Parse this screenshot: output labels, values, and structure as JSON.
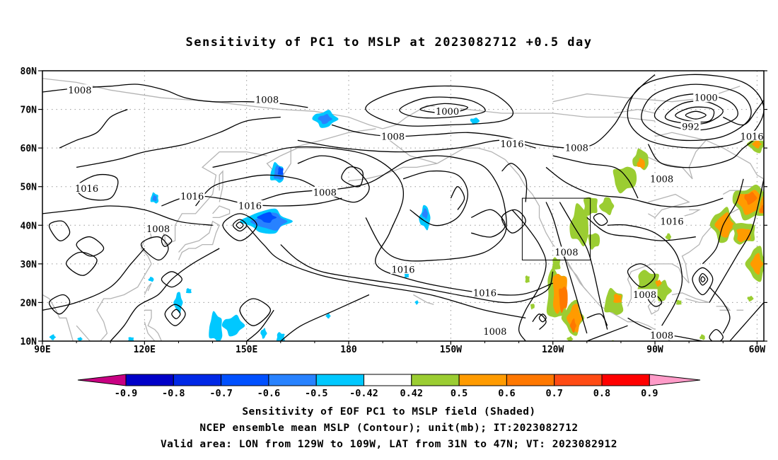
{
  "title": "Sensitivity of PC1 to MSLP at 2023082712 +0.5 day",
  "map": {
    "lon_range": [
      90,
      302
    ],
    "lat_range": [
      10,
      80
    ],
    "lat_ticks": [
      {
        "v": 80,
        "label": "80N"
      },
      {
        "v": 70,
        "label": "70N"
      },
      {
        "v": 60,
        "label": "60N"
      },
      {
        "v": 50,
        "label": "50N"
      },
      {
        "v": 40,
        "label": "40N"
      },
      {
        "v": 30,
        "label": "30N"
      },
      {
        "v": 20,
        "label": "20N"
      },
      {
        "v": 10,
        "label": "10N"
      }
    ],
    "lon_ticks": [
      {
        "v": 90,
        "label": "90E"
      },
      {
        "v": 120,
        "label": "120E"
      },
      {
        "v": 150,
        "label": "150E"
      },
      {
        "v": 180,
        "label": "180"
      },
      {
        "v": 210,
        "label": "150W"
      },
      {
        "v": 240,
        "label": "120W"
      },
      {
        "v": 270,
        "label": "90W"
      },
      {
        "v": 300,
        "label": "60W"
      }
    ],
    "valid_area": {
      "lon": [
        231,
        251
      ],
      "lat": [
        31,
        47
      ]
    },
    "contour_labels": [
      {
        "text": "1008",
        "lon": 101,
        "lat": 75
      },
      {
        "text": "1008",
        "lon": 156,
        "lat": 72.5
      },
      {
        "text": "1000",
        "lon": 209,
        "lat": 69.5
      },
      {
        "text": "1000",
        "lon": 285,
        "lat": 73
      },
      {
        "text": "992",
        "lon": 280.5,
        "lat": 65.5
      },
      {
        "text": "1016",
        "lon": 298.5,
        "lat": 63
      },
      {
        "text": "1008",
        "lon": 193,
        "lat": 63
      },
      {
        "text": "1016",
        "lon": 228,
        "lat": 61
      },
      {
        "text": "1008",
        "lon": 247,
        "lat": 60
      },
      {
        "text": "1008",
        "lon": 272,
        "lat": 52
      },
      {
        "text": "1016",
        "lon": 103,
        "lat": 49.5
      },
      {
        "text": "1016",
        "lon": 134,
        "lat": 47.5
      },
      {
        "text": "1008",
        "lon": 173,
        "lat": 48.5
      },
      {
        "text": "1016",
        "lon": 151,
        "lat": 45
      },
      {
        "text": "1016",
        "lon": 275,
        "lat": 41
      },
      {
        "text": "1008",
        "lon": 124,
        "lat": 39
      },
      {
        "text": "1008",
        "lon": 244,
        "lat": 33
      },
      {
        "text": "1016",
        "lon": 196,
        "lat": 28.5
      },
      {
        "text": "1016",
        "lon": 220,
        "lat": 22.5
      },
      {
        "text": "1008",
        "lon": 267,
        "lat": 22
      },
      {
        "text": "1008",
        "lon": 223,
        "lat": 12.5
      },
      {
        "text": "1008",
        "lon": 272,
        "lat": 11.5
      }
    ]
  },
  "colorbar": {
    "labels": [
      "-0.9",
      "-0.8",
      "-0.7",
      "-0.6",
      "-0.5",
      "-0.42",
      "0.42",
      "0.5",
      "0.6",
      "0.7",
      "0.8",
      "0.9"
    ],
    "colors": [
      "#0000c8",
      "#0028e6",
      "#0050ff",
      "#2882ff",
      "#00c8ff",
      "#ffffff",
      "#9bcd32",
      "#ff9b00",
      "#ff7800",
      "#ff4b14",
      "#ff0000"
    ],
    "low_color": "#c80082",
    "high_color": "#ff9bc8"
  },
  "colors": {
    "negative_light": "#00c8ff",
    "negative_mid": "#2882ff",
    "negative_strong": "#0050ff",
    "positive_light": "#9bcd32",
    "positive_mid": "#ff9b00",
    "positive_strong": "#ff7800",
    "coastline": "#b4b4b4",
    "contour": "#000000"
  },
  "footer": {
    "line1": "Sensitivity of EOF PC1 to MSLP field (Shaded)",
    "line2": "NCEP ensemble mean MSLP (Contour); unit(mb); IT:2023082712",
    "line3": "Valid area: LON from 129W to 109W, LAT from 31N to 47N; VT: 2023082912"
  }
}
